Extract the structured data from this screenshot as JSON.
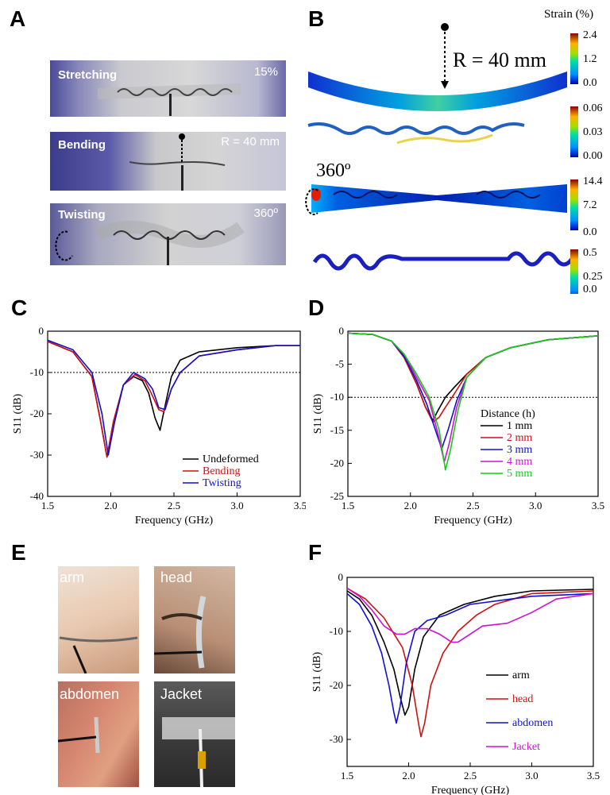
{
  "panels": {
    "a": "A",
    "b": "B",
    "c": "C",
    "d": "D",
    "e": "E",
    "f": "F"
  },
  "panelA": {
    "stretching": "Stretching",
    "stretch_val": "15%",
    "bending": "Bending",
    "bend_val": "R = 40 mm",
    "twisting": "Twisting",
    "twist_val": "360º"
  },
  "panelB": {
    "strain_title": "Strain (%)",
    "radius": "R = 40 mm",
    "angle": "360º",
    "bars": [
      {
        "max": "2.4",
        "mid": "1.2",
        "min": "0.0"
      },
      {
        "max": "0.06",
        "mid": "0.03",
        "min": "0.00"
      },
      {
        "max": "14.4",
        "mid": "7.2",
        "min": "0.0"
      },
      {
        "max": "0.5",
        "mid": "0.25",
        "min": "0.0"
      }
    ]
  },
  "panelE": {
    "arm": "arm",
    "head": "head",
    "abdomen": "abdomen",
    "jacket": "Jacket"
  },
  "chart_data": [
    {
      "type": "line",
      "panel": "C",
      "xlabel": "Frequency (GHz)",
      "ylabel": "S11 (dB)",
      "xlim": [
        1.5,
        3.5
      ],
      "ylim": [
        -40,
        0
      ],
      "xticks": [
        "1.5",
        "2.0",
        "2.5",
        "3.0",
        "3.5"
      ],
      "yticks": [
        "0",
        "-10",
        "-20",
        "-30",
        "-40"
      ],
      "reference_line": -10,
      "series": [
        {
          "name": "Undeformed",
          "color": "#000000",
          "x": [
            1.5,
            1.7,
            1.85,
            1.92,
            1.97,
            2.02,
            2.1,
            2.18,
            2.25,
            2.3,
            2.35,
            2.39,
            2.43,
            2.48,
            2.55,
            2.7,
            3.0,
            3.3,
            3.5
          ],
          "y": [
            -2.5,
            -5,
            -11,
            -22,
            -30.5,
            -22,
            -13,
            -11,
            -12,
            -15,
            -21,
            -24,
            -18,
            -11,
            -7,
            -5,
            -4,
            -3.5,
            -3.5
          ]
        },
        {
          "name": "Bending",
          "color": "#d01010",
          "x": [
            1.5,
            1.7,
            1.85,
            1.92,
            1.97,
            2.02,
            2.1,
            2.19,
            2.27,
            2.32,
            2.38,
            2.42,
            2.48,
            2.55,
            2.7,
            3.0,
            3.3,
            3.5
          ],
          "y": [
            -2.5,
            -5,
            -11,
            -22,
            -30.5,
            -22,
            -13,
            -10.5,
            -12,
            -15,
            -19,
            -19.5,
            -14,
            -10,
            -6,
            -4.5,
            -3.5,
            -3.5
          ]
        },
        {
          "name": "Twisting",
          "color": "#1010d0",
          "x": [
            1.5,
            1.7,
            1.85,
            1.93,
            1.98,
            2.03,
            2.1,
            2.18,
            2.27,
            2.33,
            2.38,
            2.43,
            2.48,
            2.55,
            2.7,
            3.0,
            3.3,
            3.5
          ],
          "y": [
            -2.2,
            -4.5,
            -10,
            -20,
            -30,
            -22,
            -13,
            -10,
            -11.5,
            -14,
            -18.5,
            -19,
            -14,
            -10,
            -6,
            -4.5,
            -3.5,
            -3.5
          ]
        }
      ],
      "legend": [
        "Undeformed",
        "Bending",
        "Twisting"
      ]
    },
    {
      "type": "line",
      "panel": "D",
      "xlabel": "Frequency (GHz)",
      "ylabel": "S11 (dB)",
      "xlim": [
        1.5,
        3.5
      ],
      "ylim": [
        -25,
        0
      ],
      "xticks": [
        "1.5",
        "2.0",
        "2.5",
        "3.0",
        "3.5"
      ],
      "yticks": [
        "0",
        "-5",
        "-10",
        "-15",
        "-20",
        "-25"
      ],
      "reference_line": -10,
      "legend_title": "Distance (h)",
      "series": [
        {
          "name": "1 mm",
          "color": "#000000",
          "x": [
            1.5,
            1.7,
            1.85,
            1.95,
            2.05,
            2.12,
            2.18,
            2.22,
            2.28,
            2.35,
            2.45,
            2.6,
            2.8,
            3.1,
            3.5
          ],
          "y": [
            -0.3,
            -0.5,
            -1.5,
            -4,
            -8,
            -11.5,
            -13.5,
            -12,
            -10,
            -8.5,
            -6.5,
            -4,
            -2.5,
            -1.3,
            -0.7
          ]
        },
        {
          "name": "2 mm",
          "color": "#d01010",
          "x": [
            1.5,
            1.7,
            1.85,
            1.95,
            2.05,
            2.12,
            2.18,
            2.23,
            2.28,
            2.35,
            2.45,
            2.6,
            2.8,
            3.1,
            3.5
          ],
          "y": [
            -0.3,
            -0.5,
            -1.5,
            -4,
            -8,
            -11.5,
            -13.8,
            -13,
            -11.5,
            -9.5,
            -6.5,
            -4,
            -2.5,
            -1.3,
            -0.7
          ]
        },
        {
          "name": "3 mm",
          "color": "#1010d0",
          "x": [
            1.5,
            1.7,
            1.85,
            1.95,
            2.05,
            2.13,
            2.2,
            2.25,
            2.3,
            2.37,
            2.45,
            2.6,
            2.8,
            3.1,
            3.5
          ],
          "y": [
            -0.3,
            -0.5,
            -1.5,
            -3.8,
            -7.5,
            -11,
            -15,
            -17.8,
            -15,
            -10.5,
            -7,
            -4,
            -2.5,
            -1.3,
            -0.7
          ]
        },
        {
          "name": "4 mm",
          "color": "#d010d0",
          "x": [
            1.5,
            1.7,
            1.85,
            1.95,
            2.05,
            2.15,
            2.22,
            2.27,
            2.31,
            2.37,
            2.45,
            2.6,
            2.8,
            3.1,
            3.5
          ],
          "y": [
            -0.3,
            -0.5,
            -1.5,
            -3.5,
            -7,
            -10.5,
            -15.5,
            -19.8,
            -17,
            -11.5,
            -7,
            -4,
            -2.5,
            -1.3,
            -0.7
          ]
        },
        {
          "name": "5 mm",
          "color": "#10d010",
          "x": [
            1.5,
            1.7,
            1.85,
            1.95,
            2.05,
            2.15,
            2.23,
            2.28,
            2.32,
            2.38,
            2.45,
            2.6,
            2.8,
            3.1,
            3.5
          ],
          "y": [
            -0.3,
            -0.5,
            -1.5,
            -3.5,
            -6.5,
            -10,
            -15,
            -21,
            -18,
            -12,
            -7,
            -4,
            -2.5,
            -1.3,
            -0.7
          ]
        }
      ]
    },
    {
      "type": "line",
      "panel": "F",
      "xlabel": "Frequency (GHz)",
      "ylabel": "S11 (dB)",
      "xlim": [
        1.5,
        3.5
      ],
      "ylim": [
        -35,
        0
      ],
      "xticks": [
        "1.5",
        "2.0",
        "2.5",
        "3.0",
        "3.5"
      ],
      "yticks": [
        "0",
        "-10",
        "-20",
        "-30"
      ],
      "series": [
        {
          "name": "arm",
          "color": "#000000",
          "x": [
            1.5,
            1.6,
            1.7,
            1.8,
            1.88,
            1.93,
            1.97,
            2.0,
            2.05,
            2.12,
            2.25,
            2.45,
            2.7,
            3.0,
            3.5
          ],
          "y": [
            -2.5,
            -4,
            -7,
            -12,
            -17,
            -22,
            -25.5,
            -24,
            -17,
            -11,
            -7,
            -5,
            -3.5,
            -2.5,
            -2.2
          ]
        },
        {
          "name": "head",
          "color": "#d01010",
          "x": [
            1.5,
            1.65,
            1.8,
            1.95,
            2.03,
            2.08,
            2.1,
            2.13,
            2.18,
            2.28,
            2.4,
            2.55,
            2.7,
            3.0,
            3.5
          ],
          "y": [
            -2,
            -4,
            -7.5,
            -13,
            -20,
            -27,
            -29.5,
            -27,
            -20,
            -14,
            -10,
            -7,
            -5,
            -3,
            -2.5
          ]
        },
        {
          "name": "abdomen",
          "color": "#1010d0",
          "x": [
            1.5,
            1.6,
            1.7,
            1.78,
            1.84,
            1.88,
            1.9,
            1.93,
            1.98,
            2.05,
            2.15,
            2.3,
            2.5,
            3.0,
            3.5
          ],
          "y": [
            -3,
            -5,
            -9,
            -14,
            -20,
            -25,
            -27,
            -24,
            -16,
            -10,
            -8,
            -7,
            -5,
            -3.5,
            -3
          ]
        },
        {
          "name": "Jacket",
          "color": "#d010d0",
          "x": [
            1.5,
            1.6,
            1.7,
            1.8,
            1.9,
            1.97,
            2.05,
            2.15,
            2.25,
            2.35,
            2.4,
            2.5,
            2.6,
            2.8,
            3.0,
            3.2,
            3.5
          ],
          "y": [
            -2,
            -3.5,
            -6,
            -9,
            -10.5,
            -10.5,
            -9.5,
            -9.5,
            -10.5,
            -12,
            -12,
            -10.5,
            -9,
            -8.5,
            -6.5,
            -4,
            -3
          ]
        }
      ]
    }
  ]
}
